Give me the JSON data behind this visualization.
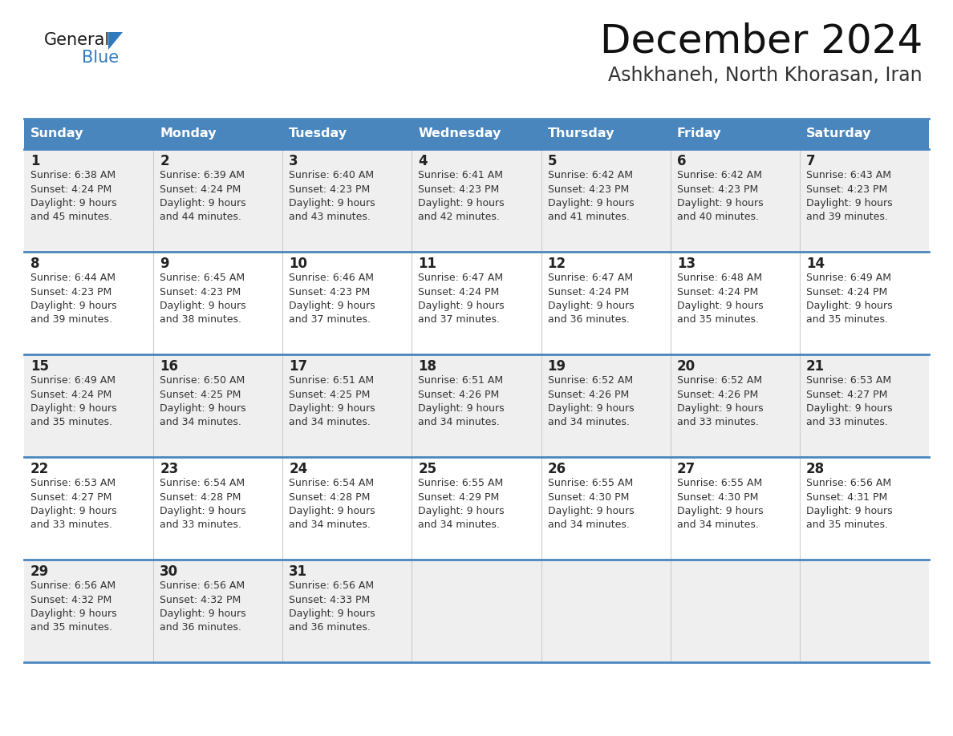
{
  "title": "December 2024",
  "subtitle": "Ashkhaneh, North Khorasan, Iran",
  "header_color": "#4a86be",
  "header_text_color": "#ffffff",
  "row_bg_odd": "#efefef",
  "row_bg_even": "#ffffff",
  "day_headers": [
    "Sunday",
    "Monday",
    "Tuesday",
    "Wednesday",
    "Thursday",
    "Friday",
    "Saturday"
  ],
  "days": [
    {
      "date": 1,
      "col": 0,
      "row": 0,
      "sunrise": "6:38 AM",
      "sunset": "4:24 PM",
      "daylight_h": "9 hours",
      "daylight_m": "45 minutes."
    },
    {
      "date": 2,
      "col": 1,
      "row": 0,
      "sunrise": "6:39 AM",
      "sunset": "4:24 PM",
      "daylight_h": "9 hours",
      "daylight_m": "44 minutes."
    },
    {
      "date": 3,
      "col": 2,
      "row": 0,
      "sunrise": "6:40 AM",
      "sunset": "4:23 PM",
      "daylight_h": "9 hours",
      "daylight_m": "43 minutes."
    },
    {
      "date": 4,
      "col": 3,
      "row": 0,
      "sunrise": "6:41 AM",
      "sunset": "4:23 PM",
      "daylight_h": "9 hours",
      "daylight_m": "42 minutes."
    },
    {
      "date": 5,
      "col": 4,
      "row": 0,
      "sunrise": "6:42 AM",
      "sunset": "4:23 PM",
      "daylight_h": "9 hours",
      "daylight_m": "41 minutes."
    },
    {
      "date": 6,
      "col": 5,
      "row": 0,
      "sunrise": "6:42 AM",
      "sunset": "4:23 PM",
      "daylight_h": "9 hours",
      "daylight_m": "40 minutes."
    },
    {
      "date": 7,
      "col": 6,
      "row": 0,
      "sunrise": "6:43 AM",
      "sunset": "4:23 PM",
      "daylight_h": "9 hours",
      "daylight_m": "39 minutes."
    },
    {
      "date": 8,
      "col": 0,
      "row": 1,
      "sunrise": "6:44 AM",
      "sunset": "4:23 PM",
      "daylight_h": "9 hours",
      "daylight_m": "39 minutes."
    },
    {
      "date": 9,
      "col": 1,
      "row": 1,
      "sunrise": "6:45 AM",
      "sunset": "4:23 PM",
      "daylight_h": "9 hours",
      "daylight_m": "38 minutes."
    },
    {
      "date": 10,
      "col": 2,
      "row": 1,
      "sunrise": "6:46 AM",
      "sunset": "4:23 PM",
      "daylight_h": "9 hours",
      "daylight_m": "37 minutes."
    },
    {
      "date": 11,
      "col": 3,
      "row": 1,
      "sunrise": "6:47 AM",
      "sunset": "4:24 PM",
      "daylight_h": "9 hours",
      "daylight_m": "37 minutes."
    },
    {
      "date": 12,
      "col": 4,
      "row": 1,
      "sunrise": "6:47 AM",
      "sunset": "4:24 PM",
      "daylight_h": "9 hours",
      "daylight_m": "36 minutes."
    },
    {
      "date": 13,
      "col": 5,
      "row": 1,
      "sunrise": "6:48 AM",
      "sunset": "4:24 PM",
      "daylight_h": "9 hours",
      "daylight_m": "35 minutes."
    },
    {
      "date": 14,
      "col": 6,
      "row": 1,
      "sunrise": "6:49 AM",
      "sunset": "4:24 PM",
      "daylight_h": "9 hours",
      "daylight_m": "35 minutes."
    },
    {
      "date": 15,
      "col": 0,
      "row": 2,
      "sunrise": "6:49 AM",
      "sunset": "4:24 PM",
      "daylight_h": "9 hours",
      "daylight_m": "35 minutes."
    },
    {
      "date": 16,
      "col": 1,
      "row": 2,
      "sunrise": "6:50 AM",
      "sunset": "4:25 PM",
      "daylight_h": "9 hours",
      "daylight_m": "34 minutes."
    },
    {
      "date": 17,
      "col": 2,
      "row": 2,
      "sunrise": "6:51 AM",
      "sunset": "4:25 PM",
      "daylight_h": "9 hours",
      "daylight_m": "34 minutes."
    },
    {
      "date": 18,
      "col": 3,
      "row": 2,
      "sunrise": "6:51 AM",
      "sunset": "4:26 PM",
      "daylight_h": "9 hours",
      "daylight_m": "34 minutes."
    },
    {
      "date": 19,
      "col": 4,
      "row": 2,
      "sunrise": "6:52 AM",
      "sunset": "4:26 PM",
      "daylight_h": "9 hours",
      "daylight_m": "34 minutes."
    },
    {
      "date": 20,
      "col": 5,
      "row": 2,
      "sunrise": "6:52 AM",
      "sunset": "4:26 PM",
      "daylight_h": "9 hours",
      "daylight_m": "33 minutes."
    },
    {
      "date": 21,
      "col": 6,
      "row": 2,
      "sunrise": "6:53 AM",
      "sunset": "4:27 PM",
      "daylight_h": "9 hours",
      "daylight_m": "33 minutes."
    },
    {
      "date": 22,
      "col": 0,
      "row": 3,
      "sunrise": "6:53 AM",
      "sunset": "4:27 PM",
      "daylight_h": "9 hours",
      "daylight_m": "33 minutes."
    },
    {
      "date": 23,
      "col": 1,
      "row": 3,
      "sunrise": "6:54 AM",
      "sunset": "4:28 PM",
      "daylight_h": "9 hours",
      "daylight_m": "33 minutes."
    },
    {
      "date": 24,
      "col": 2,
      "row": 3,
      "sunrise": "6:54 AM",
      "sunset": "4:28 PM",
      "daylight_h": "9 hours",
      "daylight_m": "34 minutes."
    },
    {
      "date": 25,
      "col": 3,
      "row": 3,
      "sunrise": "6:55 AM",
      "sunset": "4:29 PM",
      "daylight_h": "9 hours",
      "daylight_m": "34 minutes."
    },
    {
      "date": 26,
      "col": 4,
      "row": 3,
      "sunrise": "6:55 AM",
      "sunset": "4:30 PM",
      "daylight_h": "9 hours",
      "daylight_m": "34 minutes."
    },
    {
      "date": 27,
      "col": 5,
      "row": 3,
      "sunrise": "6:55 AM",
      "sunset": "4:30 PM",
      "daylight_h": "9 hours",
      "daylight_m": "34 minutes."
    },
    {
      "date": 28,
      "col": 6,
      "row": 3,
      "sunrise": "6:56 AM",
      "sunset": "4:31 PM",
      "daylight_h": "9 hours",
      "daylight_m": "35 minutes."
    },
    {
      "date": 29,
      "col": 0,
      "row": 4,
      "sunrise": "6:56 AM",
      "sunset": "4:32 PM",
      "daylight_h": "9 hours",
      "daylight_m": "35 minutes."
    },
    {
      "date": 30,
      "col": 1,
      "row": 4,
      "sunrise": "6:56 AM",
      "sunset": "4:32 PM",
      "daylight_h": "9 hours",
      "daylight_m": "36 minutes."
    },
    {
      "date": 31,
      "col": 2,
      "row": 4,
      "sunrise": "6:56 AM",
      "sunset": "4:33 PM",
      "daylight_h": "9 hours",
      "daylight_m": "36 minutes."
    }
  ],
  "logo_general_color": "#1a1a1a",
  "logo_blue_color": "#2e7abf",
  "logo_triangle_color": "#2e7abf",
  "grid_line_color": "#4a86be",
  "title_color": "#111111",
  "subtitle_color": "#333333",
  "date_num_color": "#222222",
  "cell_text_color": "#333333"
}
